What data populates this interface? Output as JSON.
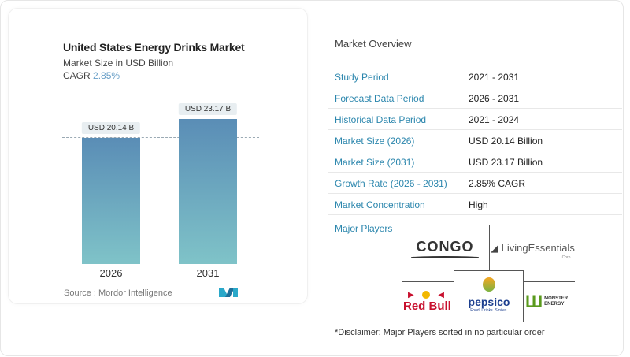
{
  "chart_data": {
    "type": "bar",
    "title": "United States Energy Drinks Market",
    "subtitle": "Market Size in USD Billion",
    "cagr_label": "CAGR",
    "cagr_value": "2.85%",
    "categories": [
      "2026",
      "2031"
    ],
    "values": [
      20.14,
      23.17
    ],
    "data_labels": [
      "USD 20.14 B",
      "USD 23.17 B"
    ],
    "ylim": [
      0,
      25
    ],
    "grid": false,
    "bar_colors": [
      "#5a8db6",
      "#7fc3c8"
    ],
    "source": "Source :  Mordor Intelligence"
  },
  "overview": {
    "title": "Market Overview",
    "rows": [
      {
        "label": "Study Period",
        "value": "2021 - 2031"
      },
      {
        "label": "Forecast Data Period",
        "value": "2026 - 2031"
      },
      {
        "label": "Historical Data Period",
        "value": "2021 - 2024"
      },
      {
        "label": "Market Size (2026)",
        "value": "USD 20.14 Billion"
      },
      {
        "label": "Market Size (2031)",
        "value": "USD 23.17 Billion"
      },
      {
        "label": "Growth Rate (2026 - 2031)",
        "value": "2.85% CAGR"
      },
      {
        "label": "Market Concentration",
        "value": "High"
      }
    ]
  },
  "players": {
    "title": "Major Players",
    "logos": [
      "CONGO",
      "LivingEssentials",
      "Red Bull",
      "pepsico",
      "MONSTER ENERGY"
    ],
    "logo_extra": {
      "living_sub": "Corp.",
      "pepsico_tagline": "Food. Drinks. Smiles."
    },
    "disclaimer": "*Disclaimer: Major Players sorted in no particular order"
  },
  "accent_color": "#2b86ad"
}
